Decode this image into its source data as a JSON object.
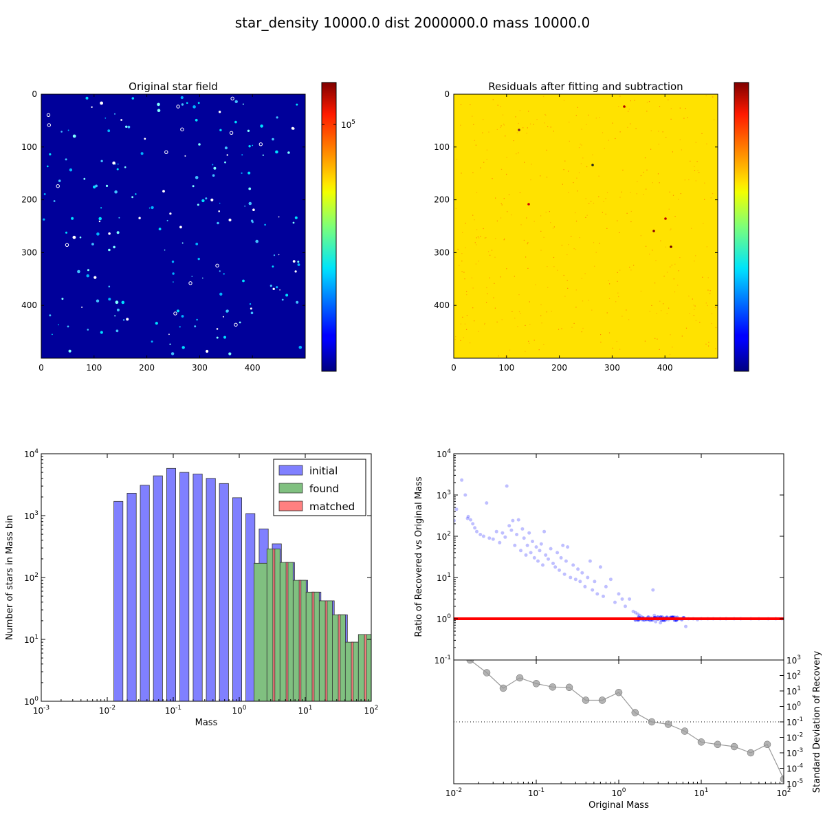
{
  "figure": {
    "title": "star_density 10000.0 dist 2000000.0 mass 10000.0"
  },
  "panels": {
    "original": {
      "title": "Original star field",
      "x_ticks": [
        "0",
        "100",
        "200",
        "300",
        "400"
      ],
      "y_ticks": [
        "0",
        "100",
        "200",
        "300",
        "400"
      ],
      "colorbar_tick": {
        "base": "10",
        "exp": "5"
      },
      "colormap": "jet",
      "background": "#00009a"
    },
    "residuals": {
      "title": "Residuals after fitting and subtraction",
      "x_ticks": [
        "0",
        "100",
        "200",
        "300",
        "400"
      ],
      "y_ticks": [
        "0",
        "100",
        "200",
        "300",
        "400"
      ],
      "colormap": "jet",
      "background": "#ffe600"
    }
  },
  "chart_data": [
    {
      "type": "bar",
      "xscale": "log",
      "yscale": "log",
      "xlim": [
        0.001,
        100
      ],
      "ylim": [
        1,
        10000
      ],
      "xlabel": "Mass",
      "ylabel": "Number of stars in Mass bin",
      "x_ticks": [
        {
          "base": "10",
          "exp": "-3"
        },
        {
          "base": "10",
          "exp": "-2"
        },
        {
          "base": "10",
          "exp": "-1"
        },
        {
          "base": "10",
          "exp": "0"
        },
        {
          "base": "10",
          "exp": "1"
        },
        {
          "base": "10",
          "exp": "2"
        }
      ],
      "y_ticks": [
        {
          "base": "10",
          "exp": "0"
        },
        {
          "base": "10",
          "exp": "1"
        },
        {
          "base": "10",
          "exp": "2"
        },
        {
          "base": "10",
          "exp": "3"
        },
        {
          "base": "10",
          "exp": "4"
        }
      ],
      "legend_position": "top-right",
      "series": [
        {
          "name": "initial",
          "color": "#8080ff",
          "bins": [
            {
              "x0": 0.0126,
              "x1": 0.0173,
              "value": 1700
            },
            {
              "x0": 0.02,
              "x1": 0.0275,
              "value": 2300
            },
            {
              "x0": 0.0316,
              "x1": 0.0435,
              "value": 3100
            },
            {
              "x0": 0.05,
              "x1": 0.0688,
              "value": 4400
            },
            {
              "x0": 0.0794,
              "x1": 0.109,
              "value": 5800
            },
            {
              "x0": 0.126,
              "x1": 0.173,
              "value": 5000
            },
            {
              "x0": 0.2,
              "x1": 0.275,
              "value": 4700
            },
            {
              "x0": 0.316,
              "x1": 0.435,
              "value": 4000
            },
            {
              "x0": 0.5,
              "x1": 0.688,
              "value": 3300
            },
            {
              "x0": 0.794,
              "x1": 1.09,
              "value": 1950
            },
            {
              "x0": 1.26,
              "x1": 1.73,
              "value": 1080
            },
            {
              "x0": 2.0,
              "x1": 2.75,
              "value": 610
            },
            {
              "x0": 3.16,
              "x1": 4.35,
              "value": 350
            },
            {
              "x0": 5.0,
              "x1": 6.88,
              "value": 175
            },
            {
              "x0": 7.94,
              "x1": 10.9,
              "value": 90
            },
            {
              "x0": 12.6,
              "x1": 17.3,
              "value": 58
            },
            {
              "x0": 20.0,
              "x1": 27.5,
              "value": 42
            },
            {
              "x0": 31.6,
              "x1": 43.5,
              "value": 25
            },
            {
              "x0": 50.0,
              "x1": 68.8,
              "value": 9
            },
            {
              "x0": 79.4,
              "x1": 100,
              "value": 4
            }
          ]
        },
        {
          "name": "found",
          "color": "#80c080",
          "bins": [
            {
              "x0": 1.67,
              "x1": 2.63,
              "value": 170
            },
            {
              "x0": 2.63,
              "x1": 4.15,
              "value": 290
            },
            {
              "x0": 4.15,
              "x1": 6.55,
              "value": 175
            },
            {
              "x0": 6.55,
              "x1": 10.3,
              "value": 90
            },
            {
              "x0": 10.3,
              "x1": 16.3,
              "value": 58
            },
            {
              "x0": 16.3,
              "x1": 25.7,
              "value": 42
            },
            {
              "x0": 25.7,
              "x1": 40.5,
              "value": 25
            },
            {
              "x0": 40.5,
              "x1": 63.9,
              "value": 9
            },
            {
              "x0": 63.9,
              "x1": 100,
              "value": 12
            }
          ]
        },
        {
          "name": "matched",
          "color": "#ff8080",
          "bins": [
            {
              "x0": 3.23,
              "x1": 3.46,
              "value": 290
            },
            {
              "x0": 5.12,
              "x1": 5.48,
              "value": 175
            },
            {
              "x0": 8.08,
              "x1": 8.63,
              "value": 90
            },
            {
              "x0": 12.7,
              "x1": 13.6,
              "value": 58
            },
            {
              "x0": 20.1,
              "x1": 21.5,
              "value": 42
            },
            {
              "x0": 31.6,
              "x1": 33.9,
              "value": 25
            },
            {
              "x0": 49.9,
              "x1": 53.4,
              "value": 9
            },
            {
              "x0": 78.6,
              "x1": 84.3,
              "value": 12
            }
          ]
        }
      ]
    },
    {
      "type": "scatter",
      "xscale": "log",
      "yscale": "log",
      "xlim": [
        0.01,
        100
      ],
      "ylim": [
        0.1,
        10000
      ],
      "ylabel": "Ratio of Recovered vs Original Mass",
      "y_ticks": [
        {
          "base": "10",
          "exp": "-1"
        },
        {
          "base": "10",
          "exp": "0"
        },
        {
          "base": "10",
          "exp": "1"
        },
        {
          "base": "10",
          "exp": "2"
        },
        {
          "base": "10",
          "exp": "3"
        },
        {
          "base": "10",
          "exp": "4"
        }
      ],
      "reference_line": {
        "y": 1,
        "color": "#ff0000"
      },
      "point_color": "#0000ff",
      "points": [
        [
          0.0101,
          240
        ],
        [
          0.0108,
          450
        ],
        [
          0.0125,
          2300
        ],
        [
          0.0138,
          1000
        ],
        [
          0.0147,
          270
        ],
        [
          0.015,
          300
        ],
        [
          0.016,
          250
        ],
        [
          0.017,
          200
        ],
        [
          0.018,
          160
        ],
        [
          0.019,
          130
        ],
        [
          0.021,
          110
        ],
        [
          0.023,
          100
        ],
        [
          0.025,
          640
        ],
        [
          0.027,
          90
        ],
        [
          0.03,
          85
        ],
        [
          0.033,
          130
        ],
        [
          0.036,
          70
        ],
        [
          0.039,
          120
        ],
        [
          0.042,
          95
        ],
        [
          0.044,
          1650
        ],
        [
          0.047,
          180
        ],
        [
          0.05,
          140
        ],
        [
          0.052,
          240
        ],
        [
          0.055,
          60
        ],
        [
          0.058,
          110
        ],
        [
          0.061,
          250
        ],
        [
          0.065,
          45
        ],
        [
          0.068,
          150
        ],
        [
          0.071,
          90
        ],
        [
          0.075,
          35
        ],
        [
          0.078,
          60
        ],
        [
          0.082,
          120
        ],
        [
          0.086,
          40
        ],
        [
          0.09,
          75
        ],
        [
          0.095,
          30
        ],
        [
          0.1,
          55
        ],
        [
          0.105,
          25
        ],
        [
          0.11,
          45
        ],
        [
          0.115,
          65
        ],
        [
          0.12,
          20
        ],
        [
          0.125,
          130
        ],
        [
          0.13,
          35
        ],
        [
          0.14,
          28
        ],
        [
          0.15,
          50
        ],
        [
          0.16,
          22
        ],
        [
          0.17,
          18
        ],
        [
          0.18,
          40
        ],
        [
          0.19,
          15
        ],
        [
          0.2,
          30
        ],
        [
          0.21,
          60
        ],
        [
          0.22,
          12
        ],
        [
          0.23,
          25
        ],
        [
          0.24,
          55
        ],
        [
          0.26,
          10
        ],
        [
          0.28,
          20
        ],
        [
          0.3,
          9
        ],
        [
          0.32,
          16
        ],
        [
          0.34,
          8
        ],
        [
          0.36,
          13
        ],
        [
          0.39,
          6
        ],
        [
          0.42,
          10
        ],
        [
          0.45,
          25
        ],
        [
          0.48,
          5
        ],
        [
          0.51,
          8
        ],
        [
          0.55,
          4
        ],
        [
          0.6,
          18
        ],
        [
          0.65,
          3.5
        ],
        [
          0.7,
          6
        ],
        [
          0.8,
          9
        ],
        [
          0.9,
          2.5
        ],
        [
          1.0,
          4
        ],
        [
          1.1,
          3
        ],
        [
          1.2,
          2
        ],
        [
          1.35,
          3
        ],
        [
          1.5,
          1.5
        ],
        [
          1.6,
          1.4
        ],
        [
          1.7,
          1.3
        ],
        [
          1.8,
          1.2
        ],
        [
          1.9,
          1.1
        ],
        [
          2.0,
          1.05
        ],
        [
          2.1,
          1.0
        ],
        [
          2.2,
          0.95
        ],
        [
          2.3,
          1.1
        ],
        [
          2.4,
          0.9
        ],
        [
          2.5,
          1.0
        ],
        [
          2.6,
          5
        ],
        [
          2.7,
          1.2
        ],
        [
          2.8,
          0.85
        ],
        [
          2.9,
          1.0
        ],
        [
          3.0,
          1.1
        ],
        [
          3.2,
          0.8
        ],
        [
          3.4,
          1.0
        ],
        [
          3.6,
          0.9
        ],
        [
          3.8,
          1.05
        ],
        [
          4.0,
          0.95
        ],
        [
          4.3,
          1.0
        ],
        [
          4.6,
          1.0
        ],
        [
          5.0,
          0.9
        ],
        [
          5.5,
          1.0
        ],
        [
          6.0,
          1.05
        ],
        [
          6.5,
          0.65
        ],
        [
          7.0,
          1.0
        ],
        [
          8.0,
          1.0
        ],
        [
          9.0,
          0.95
        ],
        [
          10,
          1.0
        ],
        [
          12,
          1.0
        ],
        [
          14,
          1.0
        ],
        [
          17,
          1.0
        ],
        [
          20,
          1.0
        ],
        [
          25,
          1.0
        ],
        [
          30,
          1.0
        ],
        [
          40,
          1.0
        ],
        [
          50,
          1.0
        ],
        [
          65,
          1.0
        ],
        [
          80,
          1.0
        ],
        [
          95,
          1.0
        ]
      ]
    },
    {
      "type": "line",
      "xscale": "log",
      "yscale": "log",
      "xlim": [
        0.01,
        100
      ],
      "ylim": [
        1e-05,
        1000
      ],
      "xlabel": "Original Mass",
      "ylabel": "Standard Deviation of Recovery",
      "x_ticks": [
        {
          "base": "10",
          "exp": "-2"
        },
        {
          "base": "10",
          "exp": "-1"
        },
        {
          "base": "10",
          "exp": "0"
        },
        {
          "base": "10",
          "exp": "1"
        },
        {
          "base": "10",
          "exp": "2"
        }
      ],
      "y_ticks": [
        {
          "base": "10",
          "exp": "3"
        },
        {
          "base": "10",
          "exp": "2"
        },
        {
          "base": "10",
          "exp": "1"
        },
        {
          "base": "10",
          "exp": "0"
        },
        {
          "base": "10",
          "exp": "-1"
        },
        {
          "base": "10",
          "exp": "-2"
        },
        {
          "base": "10",
          "exp": "-3"
        },
        {
          "base": "10",
          "exp": "-4"
        },
        {
          "base": "10",
          "exp": "-5"
        }
      ],
      "reference_line": {
        "y": 0.1,
        "style": "dotted"
      },
      "line_color": "#999999",
      "x": [
        0.0158,
        0.0251,
        0.0398,
        0.0631,
        0.1,
        0.158,
        0.251,
        0.398,
        0.631,
        1.0,
        1.58,
        2.51,
        3.98,
        6.31,
        10,
        15.8,
        25.1,
        39.8,
        63.1,
        100
      ],
      "y": [
        1000,
        150,
        15,
        70,
        30,
        18,
        17,
        2.5,
        2.5,
        8,
        0.4,
        0.1,
        0.07,
        0.025,
        0.005,
        0.0035,
        0.0025,
        0.001,
        0.0035,
        2e-05
      ]
    }
  ]
}
